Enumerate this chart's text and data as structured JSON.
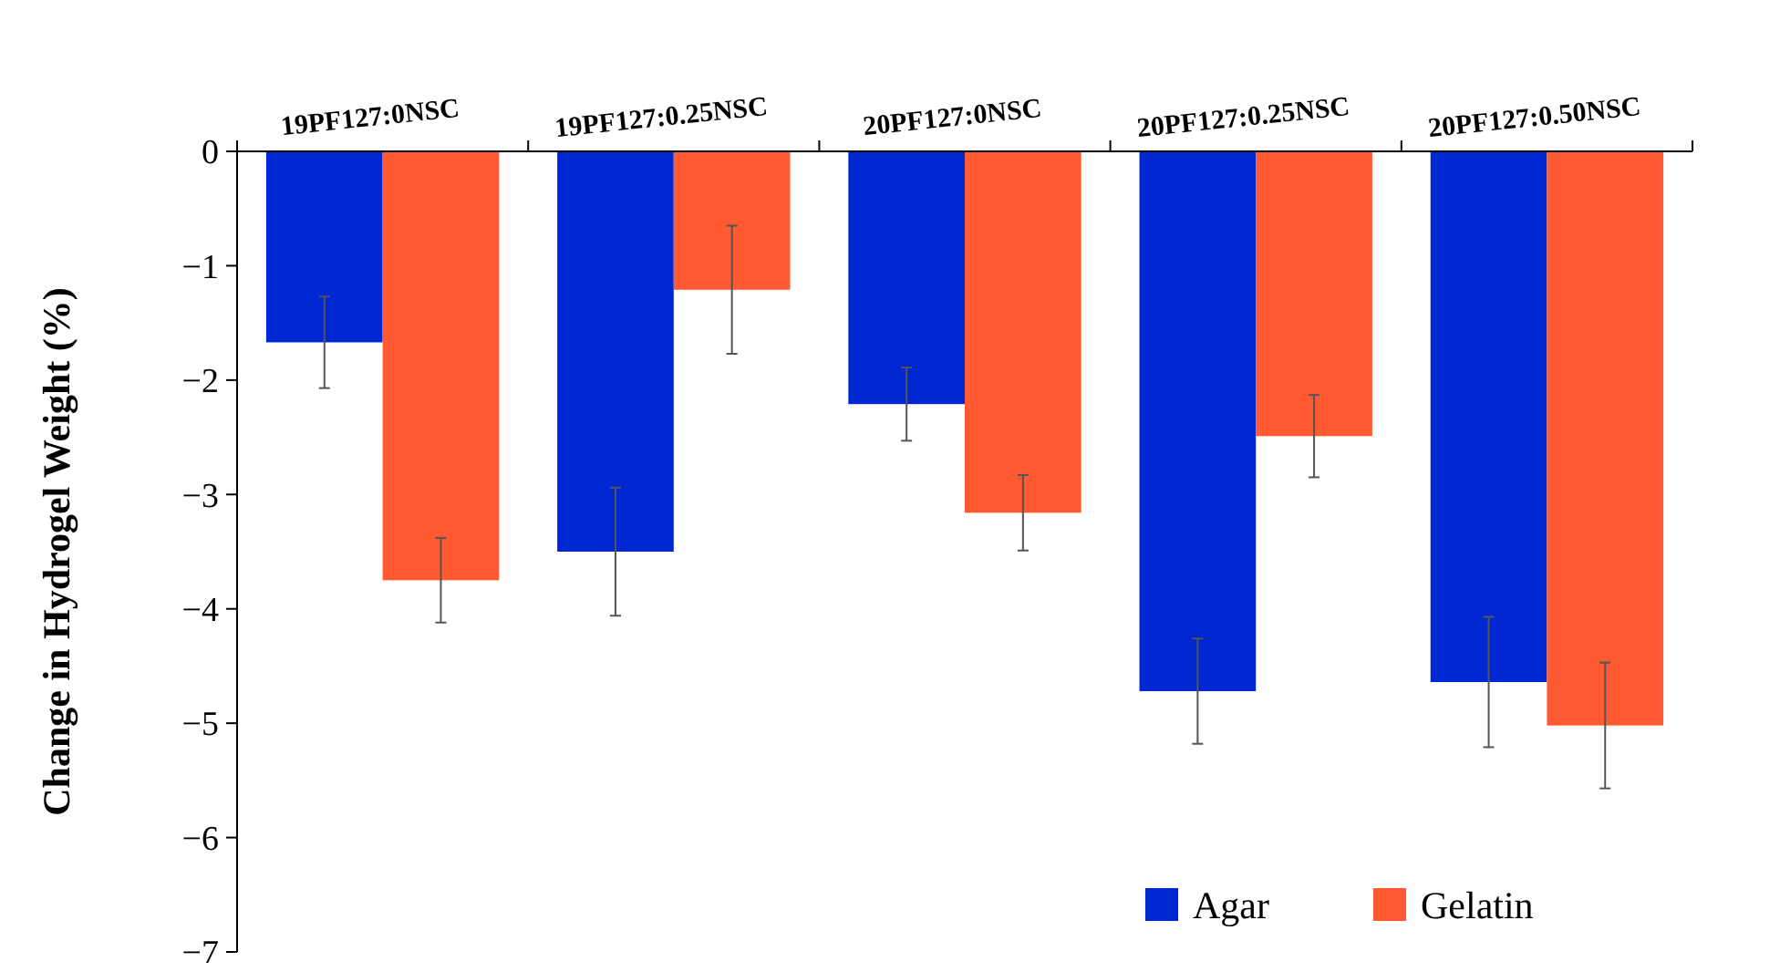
{
  "chart_data": {
    "type": "bar",
    "ylabel": "Change in Hydrogel Weight (%)",
    "categories": [
      "19PF127:0NSC",
      "19PF127:0.25NSC",
      "20PF127:0NSC",
      "20PF127:0.25NSC",
      "20PF127:0.50NSC"
    ],
    "series": [
      {
        "name": "Agar",
        "color": "#0028d2",
        "values": [
          -1.67,
          -3.5,
          -2.21,
          -4.72,
          -4.64
        ],
        "errors": [
          0.4,
          0.56,
          0.32,
          0.46,
          0.57
        ]
      },
      {
        "name": "Gelatin",
        "color": "#ff5a32",
        "values": [
          -3.75,
          -1.21,
          -3.16,
          -2.49,
          -5.02
        ],
        "errors": [
          0.37,
          0.56,
          0.33,
          0.36,
          0.55
        ]
      }
    ],
    "ylim": [
      -7,
      0
    ],
    "yticks": [
      0,
      {
        "value": -1,
        "label": "−1"
      },
      {
        "value": -2,
        "label": "−2"
      },
      {
        "value": -3,
        "label": "−3"
      },
      {
        "value": -4,
        "label": "−4"
      },
      {
        "value": -5,
        "label": "−5"
      },
      {
        "value": -6,
        "label": "−6"
      },
      {
        "value": -7,
        "label": "−7"
      }
    ],
    "grid": false,
    "legend": "bottom right"
  }
}
